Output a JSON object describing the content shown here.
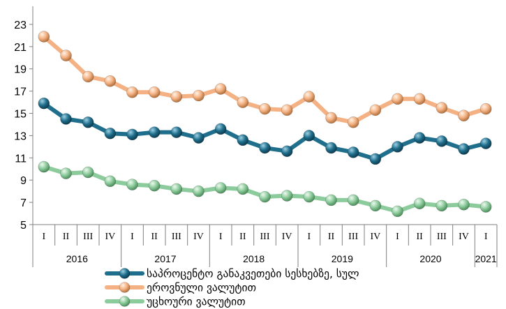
{
  "chart_data": {
    "type": "line",
    "title": "",
    "xlabel": "",
    "ylabel": "",
    "ylim": [
      5,
      24
    ],
    "yticks": [
      5,
      7,
      9,
      11,
      13,
      15,
      17,
      19,
      21,
      23
    ],
    "grid": false,
    "legend_position": "bottom",
    "categories": [
      "I",
      "II",
      "III",
      "IV",
      "I",
      "II",
      "III",
      "IV",
      "I",
      "II",
      "III",
      "IV",
      "I",
      "II",
      "III",
      "IV",
      "I",
      "II",
      "III",
      "IV",
      "I"
    ],
    "years": [
      {
        "label": "2016",
        "quarters": 4
      },
      {
        "label": "2017",
        "quarters": 4
      },
      {
        "label": "2018",
        "quarters": 4
      },
      {
        "label": "2019",
        "quarters": 4
      },
      {
        "label": "2020",
        "quarters": 4
      },
      {
        "label": "2021",
        "quarters": 1
      }
    ],
    "series": [
      {
        "name": "საპროცენტო განაკვეთები სესხებზე, სულ",
        "color": "#1F6E8C",
        "values": [
          15.9,
          14.5,
          14.2,
          13.2,
          13.1,
          13.3,
          13.3,
          12.8,
          13.6,
          12.6,
          11.9,
          11.6,
          13.0,
          11.9,
          11.5,
          10.9,
          12.0,
          12.8,
          12.5,
          11.8,
          12.3
        ]
      },
      {
        "name": "ეროვნული ვალუტით",
        "color": "#F4B183",
        "values": [
          21.9,
          20.2,
          18.3,
          17.9,
          16.9,
          16.9,
          16.5,
          16.6,
          17.2,
          16.0,
          15.4,
          15.3,
          16.5,
          14.6,
          14.2,
          15.3,
          16.3,
          16.3,
          15.5,
          14.8,
          15.4
        ]
      },
      {
        "name": "უცხოური ვალუტით",
        "color": "#8CCB9B",
        "values": [
          10.2,
          9.6,
          9.7,
          8.9,
          8.6,
          8.5,
          8.2,
          8.0,
          8.3,
          8.2,
          7.5,
          7.6,
          7.5,
          7.2,
          7.2,
          6.7,
          6.2,
          6.9,
          6.7,
          6.8,
          6.6
        ]
      }
    ]
  }
}
